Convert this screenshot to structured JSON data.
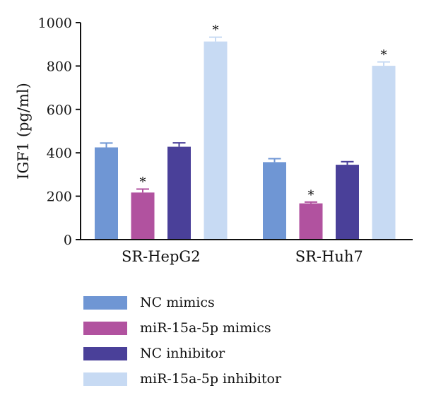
{
  "chart_data": {
    "type": "bar",
    "ylabel": "IGF1 (pg/ml)",
    "ylim": [
      0,
      1000
    ],
    "yticks": [
      "0",
      "200",
      "400",
      "600",
      "800",
      "1000"
    ],
    "categories": [
      "SR-HepG2",
      "SR-Huh7"
    ],
    "significance_marker": "*",
    "series": [
      {
        "name": "NC mimics",
        "color": "#6f96d4",
        "values": [
          425,
          357
        ],
        "errors": [
          20,
          16
        ],
        "significant": [
          false,
          false
        ]
      },
      {
        "name": "miR-15a-5p mimics",
        "color": "#b1529f",
        "values": [
          217,
          167
        ],
        "errors": [
          16,
          6
        ],
        "significant": [
          true,
          true
        ]
      },
      {
        "name": "NC inhibitor",
        "color": "#4a4099",
        "values": [
          428,
          345
        ],
        "errors": [
          18,
          14
        ],
        "significant": [
          false,
          false
        ]
      },
      {
        "name": "miR-15a-5p inhibitor",
        "color": "#c7daf3",
        "values": [
          913,
          801
        ],
        "errors": [
          20,
          18
        ],
        "significant": [
          true,
          true
        ]
      }
    ],
    "legend_position": "bottom"
  }
}
